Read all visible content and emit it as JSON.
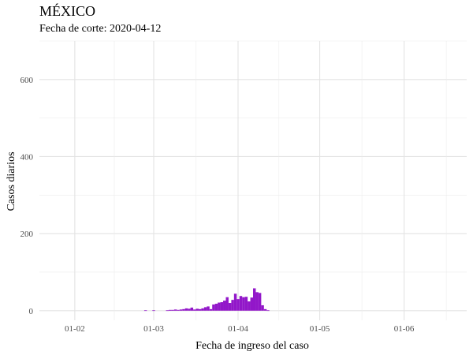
{
  "chart_data": {
    "type": "bar",
    "title": "MÉXICO",
    "subtitle": "Fecha de corte: 2020-04-12",
    "xlabel": "Fecha de ingreso del caso",
    "ylabel": "Casos diarios",
    "x_ticks": [
      "01-02",
      "01-03",
      "01-04",
      "01-05",
      "01-06"
    ],
    "x_tick_dates": [
      "2020-02-01",
      "2020-03-01",
      "2020-04-01",
      "2020-05-01",
      "2020-06-01"
    ],
    "y_ticks": [
      0,
      200,
      400,
      600
    ],
    "xlim": [
      "2020-01-19",
      "2020-06-24"
    ],
    "ylim": [
      -25,
      700
    ],
    "grid": true,
    "bar_color": "#9217C9",
    "dates": [
      "2020-02-27",
      "2020-03-01",
      "2020-03-06",
      "2020-03-07",
      "2020-03-08",
      "2020-03-09",
      "2020-03-10",
      "2020-03-11",
      "2020-03-12",
      "2020-03-13",
      "2020-03-14",
      "2020-03-15",
      "2020-03-16",
      "2020-03-17",
      "2020-03-18",
      "2020-03-19",
      "2020-03-20",
      "2020-03-21",
      "2020-03-22",
      "2020-03-23",
      "2020-03-24",
      "2020-03-25",
      "2020-03-26",
      "2020-03-27",
      "2020-03-28",
      "2020-03-29",
      "2020-03-30",
      "2020-03-31",
      "2020-04-01",
      "2020-04-02",
      "2020-04-03",
      "2020-04-04",
      "2020-04-05",
      "2020-04-06",
      "2020-04-07",
      "2020-04-08",
      "2020-04-09",
      "2020-04-10",
      "2020-04-11",
      "2020-04-12"
    ],
    "values": [
      1,
      1,
      1,
      2,
      2,
      3,
      2,
      3,
      4,
      6,
      5,
      8,
      3,
      5,
      4,
      6,
      9,
      11,
      4,
      16,
      18,
      21,
      22,
      26,
      35,
      20,
      28,
      44,
      30,
      38,
      35,
      36,
      24,
      34,
      58,
      48,
      46,
      14,
      4,
      1
    ]
  }
}
